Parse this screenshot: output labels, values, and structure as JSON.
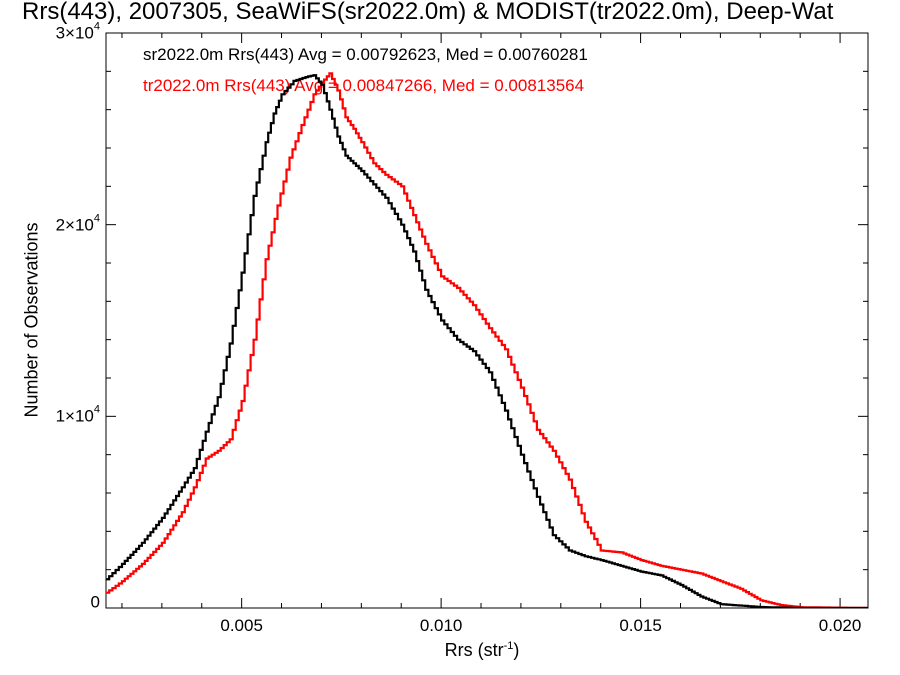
{
  "chart_data": {
    "type": "line",
    "title": "Rrs(443), 2007305, SeaWiFS(sr2022.0m) & MODIST(tr2022.0m), Deep-Wat",
    "xlabel_main": "Rrs (str",
    "xlabel_sup": "-1",
    "xlabel_close": ")",
    "ylabel": "Number of Observations",
    "xlim": [
      0.0016,
      0.0207
    ],
    "ylim": [
      0,
      30000
    ],
    "x_ticks": [
      {
        "value": 0.005,
        "label": "0.005"
      },
      {
        "value": 0.01,
        "label": "0.010"
      },
      {
        "value": 0.015,
        "label": "0.015"
      },
      {
        "value": 0.02,
        "label": "0.020"
      }
    ],
    "y_ticks": [
      {
        "value": 0,
        "label": "0",
        "sup": ""
      },
      {
        "value": 10000,
        "label": "1×10",
        "sup": "4"
      },
      {
        "value": 20000,
        "label": "2×10",
        "sup": "4"
      },
      {
        "value": 30000,
        "label": "3×10",
        "sup": "4"
      }
    ],
    "annotations": [
      {
        "text": "sr2022.0m Rrs(443) Avg = 0.00792623, Med = 0.00760281",
        "color": "#000000"
      },
      {
        "text": "tr2022.0m Rrs(443) Avg = 0.00847266, Med = 0.00813564",
        "color": "#ff0000"
      }
    ],
    "series": [
      {
        "color": "#000000",
        "x": [
          0.0016,
          0.002,
          0.0025,
          0.003,
          0.0035,
          0.0038,
          0.0041,
          0.0044,
          0.0047,
          0.005,
          0.0053,
          0.0056,
          0.0058,
          0.006,
          0.0063,
          0.0066,
          0.0068,
          0.007,
          0.0072,
          0.0074,
          0.0076,
          0.0078,
          0.008,
          0.0083,
          0.0086,
          0.009,
          0.0093,
          0.0096,
          0.01,
          0.0104,
          0.0108,
          0.0112,
          0.0116,
          0.012,
          0.0124,
          0.0128,
          0.0132,
          0.0136,
          0.014,
          0.0145,
          0.015,
          0.0155,
          0.016,
          0.0165,
          0.017,
          0.018,
          0.019,
          0.0207
        ],
        "y": [
          1500,
          2300,
          3400,
          4700,
          6300,
          7300,
          9200,
          11000,
          13800,
          17500,
          21500,
          24300,
          25800,
          26800,
          27500,
          27700,
          27800,
          27300,
          26000,
          24600,
          23600,
          23200,
          22800,
          22100,
          21400,
          20000,
          18600,
          16600,
          15000,
          14000,
          13400,
          12300,
          10300,
          8000,
          5800,
          3800,
          3000,
          2700,
          2500,
          2200,
          1900,
          1700,
          1200,
          600,
          200,
          50,
          0,
          0
        ]
      },
      {
        "color": "#ff0000",
        "x": [
          0.0016,
          0.002,
          0.0025,
          0.003,
          0.0035,
          0.0038,
          0.0041,
          0.0044,
          0.0047,
          0.005,
          0.0053,
          0.0056,
          0.0059,
          0.0062,
          0.0065,
          0.0068,
          0.007,
          0.0072,
          0.0074,
          0.0076,
          0.0078,
          0.008,
          0.0083,
          0.0086,
          0.009,
          0.0093,
          0.0096,
          0.01,
          0.0104,
          0.0108,
          0.0112,
          0.0116,
          0.012,
          0.0124,
          0.0128,
          0.0132,
          0.0136,
          0.014,
          0.0145,
          0.015,
          0.0155,
          0.016,
          0.0165,
          0.017,
          0.0175,
          0.018,
          0.0185,
          0.019,
          0.0207
        ],
        "y": [
          800,
          1400,
          2300,
          3400,
          5000,
          6300,
          7800,
          8200,
          8800,
          10800,
          14000,
          18200,
          21000,
          23500,
          25200,
          26800,
          27400,
          27900,
          27000,
          25600,
          25000,
          24300,
          23200,
          22600,
          22000,
          20500,
          19000,
          17300,
          16700,
          15800,
          14600,
          13500,
          11500,
          9300,
          8200,
          6700,
          4500,
          3000,
          2900,
          2500,
          2200,
          2000,
          1800,
          1400,
          1000,
          400,
          150,
          40,
          0
        ]
      }
    ]
  }
}
